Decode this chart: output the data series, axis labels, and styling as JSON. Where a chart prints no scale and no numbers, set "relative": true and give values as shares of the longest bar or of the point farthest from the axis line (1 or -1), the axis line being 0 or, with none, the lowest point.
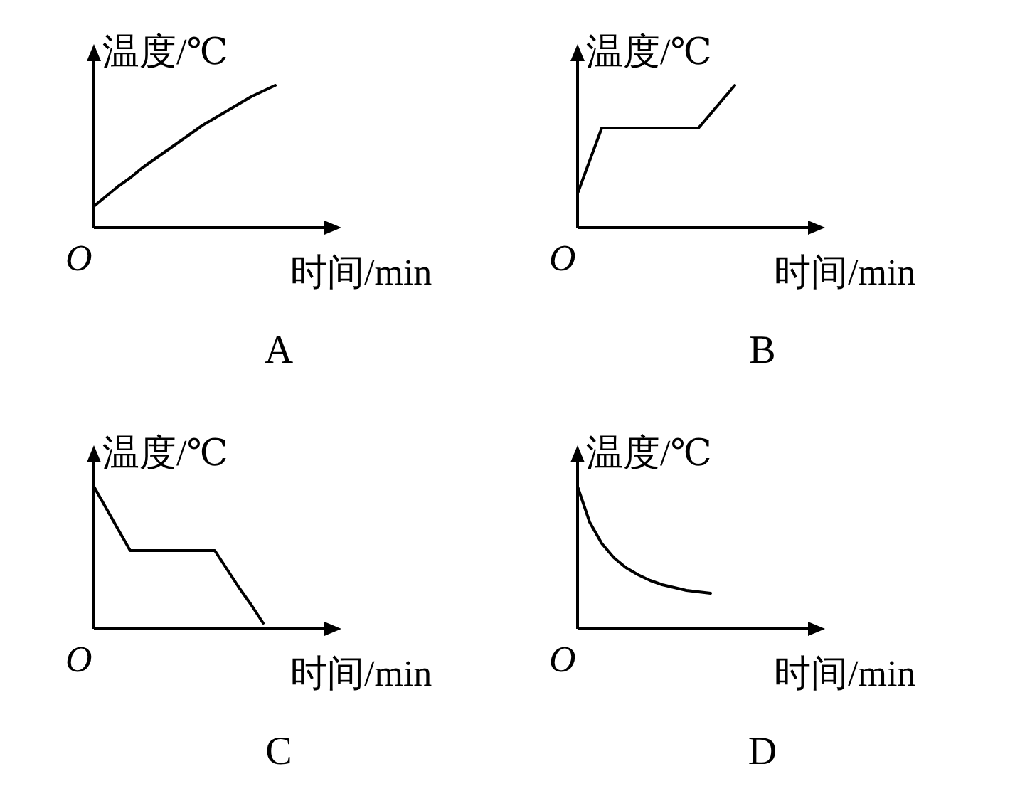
{
  "chart_data": [
    {
      "type": "line",
      "title": "A",
      "xlabel": "时间/min",
      "ylabel": "温度/℃",
      "annotations": [
        "O"
      ],
      "relative": true,
      "categories": [
        null,
        null,
        null,
        null,
        null,
        null,
        null,
        null,
        null,
        null,
        null,
        null,
        null,
        null,
        null,
        null,
        null,
        null,
        null,
        null
      ],
      "series": [
        {
          "color": "#000000",
          "values": [
            0.15,
            0.22,
            0.29,
            0.35,
            0.42,
            0.48,
            0.54,
            0.6,
            0.66,
            0.72,
            0.77,
            0.82,
            0.87,
            0.92,
            0.96,
            1.0,
            null,
            null,
            null,
            null
          ]
        }
      ]
    },
    {
      "type": "line",
      "title": "B",
      "xlabel": "时间/min",
      "ylabel": "温度/℃",
      "annotations": [
        "O"
      ],
      "relative": true,
      "categories": [
        null,
        null,
        null,
        null,
        null,
        null,
        null,
        null,
        null,
        null,
        null,
        null,
        null,
        null,
        null,
        null,
        null,
        null,
        null,
        null
      ],
      "series": [
        {
          "color": "#000000",
          "values": [
            0.24,
            0.47,
            0.7,
            0.7,
            0.7,
            0.7,
            0.7,
            0.7,
            0.7,
            0.7,
            0.7,
            0.8,
            0.9,
            1.0,
            null,
            null,
            null,
            null,
            null,
            null
          ]
        }
      ]
    },
    {
      "type": "line",
      "title": "C",
      "xlabel": "时间/min",
      "ylabel": "温度/℃",
      "annotations": [
        "O"
      ],
      "relative": true,
      "categories": [
        null,
        null,
        null,
        null,
        null,
        null,
        null,
        null,
        null,
        null,
        null,
        null,
        null,
        null,
        null,
        null,
        null,
        null,
        null,
        null
      ],
      "series": [
        {
          "color": "#000000",
          "values": [
            1.0,
            0.85,
            0.7,
            0.55,
            0.55,
            0.55,
            0.55,
            0.55,
            0.55,
            0.55,
            0.55,
            0.42,
            0.29,
            0.17,
            0.04,
            null,
            null,
            null,
            null,
            null
          ]
        }
      ]
    },
    {
      "type": "line",
      "title": "D",
      "xlabel": "时间/min",
      "ylabel": "温度/℃",
      "annotations": [
        "O"
      ],
      "relative": true,
      "categories": [
        null,
        null,
        null,
        null,
        null,
        null,
        null,
        null,
        null,
        null,
        null,
        null,
        null,
        null,
        null,
        null,
        null,
        null,
        null,
        null
      ],
      "series": [
        {
          "color": "#000000",
          "values": [
            1.0,
            0.75,
            0.6,
            0.5,
            0.43,
            0.38,
            0.34,
            0.31,
            0.29,
            0.27,
            0.26,
            0.25,
            null,
            null,
            null,
            null,
            null,
            null,
            null,
            null
          ]
        }
      ]
    }
  ]
}
